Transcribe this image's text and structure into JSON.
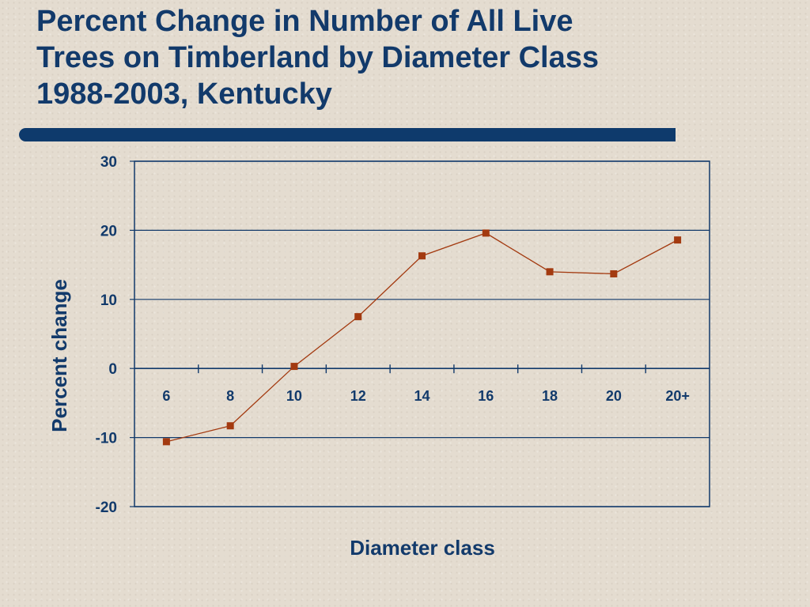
{
  "title_lines": [
    "Percent Change in Number of All Live",
    "Trees on Timberland by Diameter Class",
    "1988-2003, Kentucky"
  ],
  "colors": {
    "title": "#123a6b",
    "axis": "#123a6b",
    "series": "#a33a10",
    "marker": "#a33a10"
  },
  "chart_data": {
    "type": "line",
    "xlabel": "Diameter class",
    "ylabel": "Percent change",
    "categories": [
      "6",
      "8",
      "10",
      "12",
      "14",
      "16",
      "18",
      "20",
      "20+"
    ],
    "series": [
      {
        "values": [
          -10.6,
          -8.3,
          0.3,
          7.5,
          16.3,
          19.6,
          14.0,
          13.7,
          18.6
        ]
      }
    ],
    "ylim": [
      -20,
      30
    ],
    "yticks": [
      "-20",
      "-10",
      "0",
      "10",
      "20",
      "30"
    ],
    "grid": true
  }
}
